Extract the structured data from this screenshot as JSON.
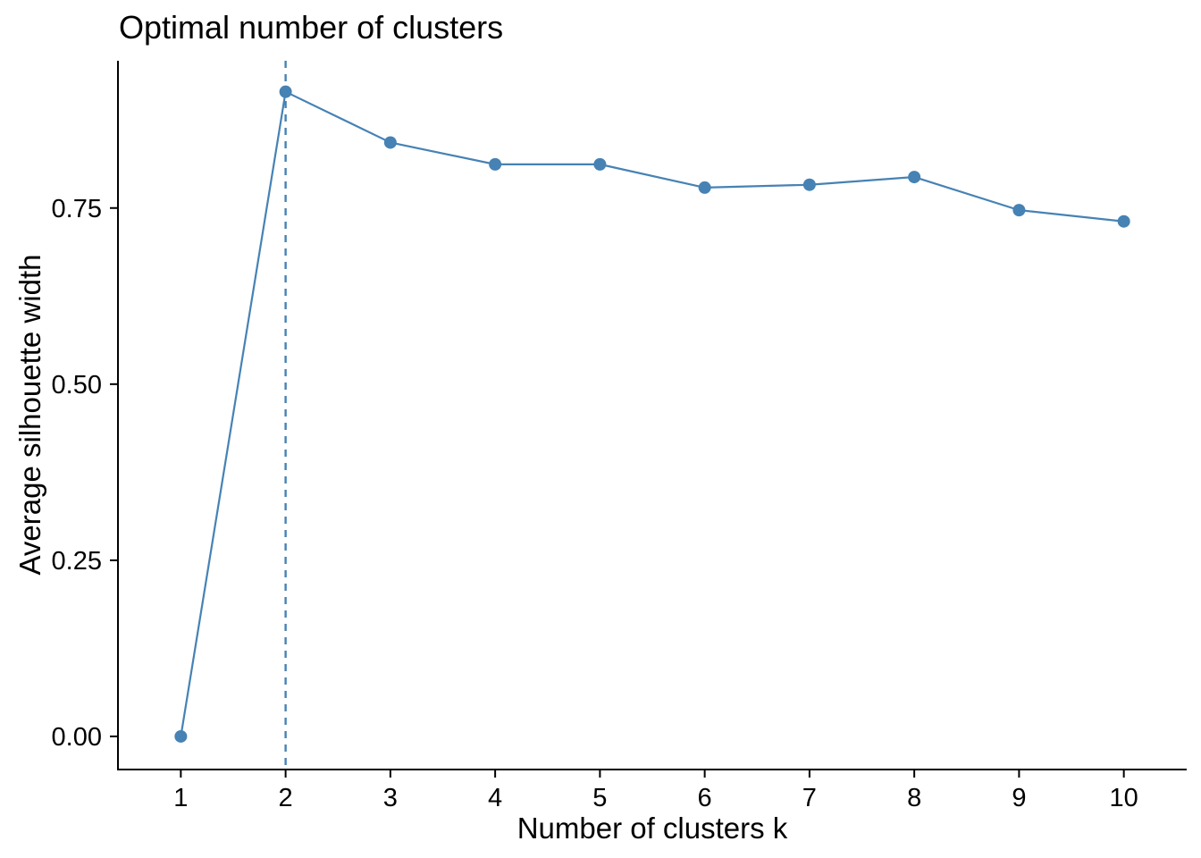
{
  "chart_data": {
    "type": "line",
    "title": "Optimal number of clusters",
    "xlabel": "Number of clusters k",
    "ylabel": "Average silhouette width",
    "series": [
      {
        "name": "Average silhouette width",
        "x": [
          1,
          2,
          3,
          4,
          5,
          6,
          7,
          8,
          9,
          10
        ],
        "values": [
          0.0,
          0.915,
          0.843,
          0.812,
          0.812,
          0.779,
          0.783,
          0.794,
          0.747,
          0.731
        ]
      }
    ],
    "x_tick_labels": [
      "1",
      "2",
      "3",
      "4",
      "5",
      "6",
      "7",
      "8",
      "9",
      "10"
    ],
    "y_ticks": [
      0,
      0.25,
      0.5,
      0.75
    ],
    "y_tick_labels": [
      "0.00",
      "0.25",
      "0.50",
      "0.75"
    ],
    "ylim": [
      -0.047,
      0.959
    ],
    "x_padding_units": 0.6,
    "annotations": {
      "optimal_k_vline": {
        "x": 2,
        "style": "dashed"
      }
    },
    "grid": false,
    "legend_position": "none",
    "colors": {
      "line": "#4682B4",
      "point": "#4682B4",
      "vline": "#4682B4",
      "axis": "#000000",
      "text": "#000000",
      "background": "#FFFFFF"
    }
  }
}
